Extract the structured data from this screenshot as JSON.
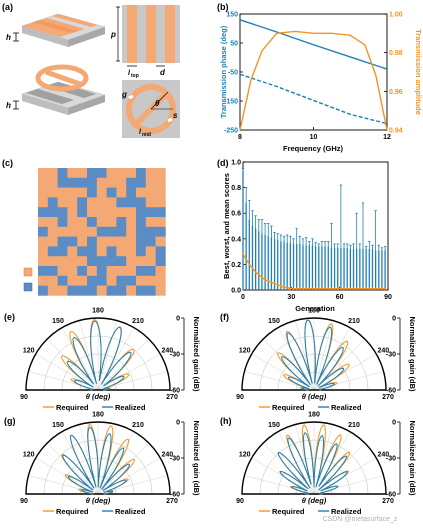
{
  "panel_labels": {
    "a": "(a)",
    "b": "(b)",
    "c": "(c)",
    "d": "(d)",
    "e": "(e)",
    "f": "(f)",
    "g": "(g)",
    "h": "(h)"
  },
  "panel_a": {
    "label_h1": "h",
    "label_p": "p",
    "label_top": "l",
    "label_top_sub": "top",
    "label_d": "d",
    "label_h2": "h",
    "label_g": "g",
    "label_theta": "θ",
    "label_s": "s",
    "label_mid": "l",
    "label_mid_sub": "mid"
  },
  "colors": {
    "orange": "#f4a874",
    "blue": "#5b8dc4",
    "teal": "#1f7fb5",
    "amber": "#f39422",
    "grey": "#c8c8c8"
  },
  "chart_data": [
    {
      "id": "b",
      "type": "line",
      "xlabel": "Frequency (GHz)",
      "ylabel_left": "Transmission phase (deg)",
      "ylabel_right": "Transmission amplitude",
      "xlim": [
        8,
        12
      ],
      "ylim_left": [
        -250,
        150
      ],
      "ylim_right": [
        0.94,
        1.0
      ],
      "xticks": [
        "8",
        "10",
        "12"
      ],
      "yticks_left": [
        "150",
        "50",
        "-50",
        "-150",
        "-250"
      ],
      "yticks_right": [
        "1.00",
        "0.98",
        "0.96",
        "0.94"
      ],
      "series": [
        {
          "axis": "left",
          "style": "solid",
          "x": [
            8,
            9,
            10,
            11,
            12
          ],
          "y": [
            130,
            88,
            44,
            2,
            -40
          ]
        },
        {
          "axis": "left",
          "style": "dashed",
          "x": [
            8,
            9,
            10,
            11,
            12
          ],
          "y": [
            -58,
            -100,
            -148,
            -196,
            -228
          ]
        },
        {
          "axis": "right",
          "style": "solid",
          "x": [
            8,
            8.3,
            8.6,
            9,
            9.5,
            10,
            10.5,
            11,
            11.4,
            11.7,
            12
          ],
          "y": [
            0.94,
            0.966,
            0.981,
            0.99,
            0.991,
            0.99,
            0.99,
            0.989,
            0.984,
            0.968,
            0.94
          ]
        }
      ]
    },
    {
      "id": "d",
      "type": "bar",
      "xlabel": "Generation",
      "ylabel": "Best, worst, and mean scores",
      "xlim": [
        0,
        90
      ],
      "ylim": [
        0,
        1.0
      ],
      "xticks": [
        "0",
        "30",
        "60",
        "90"
      ],
      "yticks": [
        "0.0",
        "0.2",
        "0.4",
        "0.6",
        "0.8",
        "1.0"
      ],
      "mean": [
        0.93,
        0.68,
        0.55,
        0.5,
        0.48,
        0.46,
        0.44,
        0.43,
        0.42,
        0.41,
        0.4,
        0.39,
        0.38,
        0.38,
        0.37,
        0.37,
        0.36,
        0.36,
        0.36,
        0.35,
        0.35,
        0.35,
        0.35,
        0.34,
        0.34,
        0.34,
        0.34,
        0.34,
        0.33,
        0.33,
        0.33,
        0.33,
        0.33,
        0.33,
        0.32,
        0.32,
        0.32,
        0.32,
        0.32,
        0.32,
        0.32,
        0.32,
        0.31,
        0.31,
        0.31,
        0.31
      ],
      "worst": [
        0.95,
        0.8,
        0.7,
        0.62,
        0.58,
        0.55,
        0.55,
        0.52,
        0.52,
        0.5,
        0.45,
        0.44,
        0.43,
        0.42,
        0.43,
        0.42,
        0.4,
        0.48,
        0.42,
        0.4,
        0.41,
        0.38,
        0.4,
        0.37,
        0.36,
        0.38,
        0.38,
        0.38,
        0.52,
        0.36,
        0.36,
        0.82,
        0.36,
        0.36,
        0.35,
        0.36,
        0.6,
        0.36,
        0.68,
        0.34,
        0.38,
        0.35,
        0.62,
        0.35,
        0.33,
        0.34
      ],
      "best": [
        0.28,
        0.24,
        0.2,
        0.17,
        0.14,
        0.12,
        0.1,
        0.08,
        0.07,
        0.06,
        0.05,
        0.04,
        0.03,
        0.02,
        0.02,
        0.01,
        0.01,
        0.01,
        0.01,
        0.01,
        0.01,
        0.01,
        0.01,
        0.01,
        0.01,
        0.01,
        0.01,
        0.01,
        0.01,
        0.01,
        0.01,
        0.01,
        0.01,
        0.01,
        0.01,
        0.01,
        0.01,
        0.01,
        0.01,
        0.01,
        0.01,
        0.01,
        0.01,
        0.01,
        0.01,
        0.01
      ]
    },
    {
      "id": "polar",
      "type": "line",
      "xlabel": "θ (deg)",
      "ylabel": "Normalized gain (dB)",
      "angle_ticks": [
        "90",
        "120",
        "150",
        "180",
        "210",
        "240",
        "270"
      ],
      "radial_ticks": [
        "0",
        "-30",
        "-60"
      ],
      "legend": [
        "Required",
        "Realized"
      ]
    }
  ],
  "grid_c": [
    "0010011000100",
    "0011110001100",
    "0000010101000",
    "0100100011100",
    "1110100000111",
    "0010010010100",
    "1000001110111",
    "0011010000110",
    "0110110100101",
    "0000011110001",
    "1100101000110",
    "0010011011000",
    "1001110110110"
  ],
  "watermark": "CSDN @metasurface_z"
}
